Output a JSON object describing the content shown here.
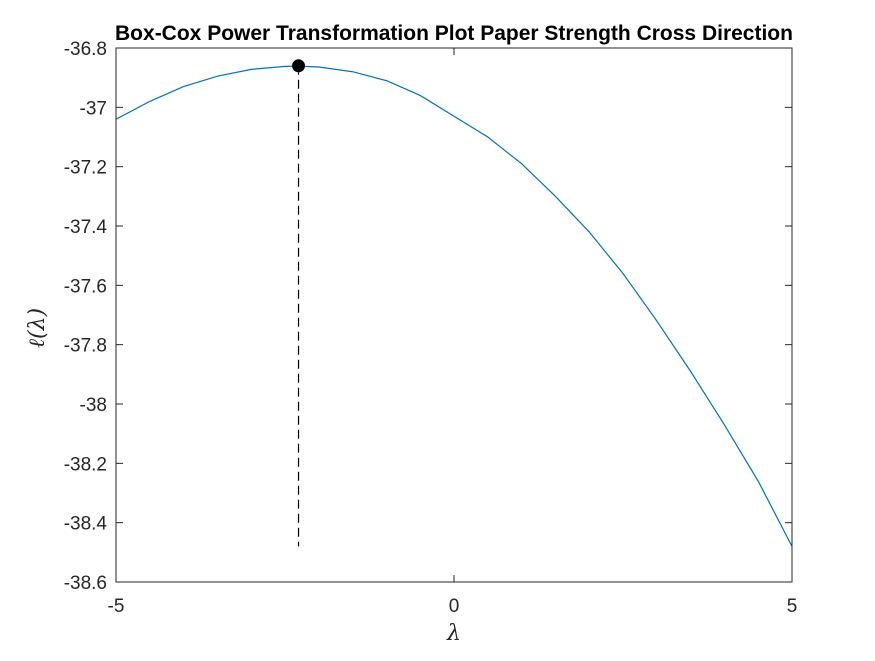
{
  "chart_data": {
    "type": "line",
    "title": "Box-Cox Power Transformation Plot Paper Strength Cross Direction",
    "xlabel": "λ",
    "ylabel": "ℓ(λ)",
    "xlim": [
      -5,
      5
    ],
    "ylim": [
      -38.6,
      -36.8
    ],
    "xticks": [
      -5,
      0,
      5
    ],
    "xtick_labels": [
      "-5",
      "0",
      "5"
    ],
    "yticks": [
      -38.6,
      -38.4,
      -38.2,
      -38,
      -37.8,
      -37.6,
      -37.4,
      -37.2,
      -37,
      -36.8
    ],
    "ytick_labels": [
      "-38.6",
      "-38.4",
      "-38.2",
      "-38",
      "-37.8",
      "-37.6",
      "-37.4",
      "-37.2",
      "-37",
      "-36.8"
    ],
    "grid": false,
    "series": [
      {
        "color": "#0072BD",
        "x": [
          -5,
          -4.5,
          -4,
          -3.5,
          -3,
          -2.5,
          -2.3,
          -2,
          -1.5,
          -1,
          -0.5,
          0,
          0.5,
          1,
          1.5,
          2,
          2.5,
          3,
          3.5,
          4,
          4.5,
          5
        ],
        "y": [
          -37.04,
          -36.98,
          -36.93,
          -36.895,
          -36.872,
          -36.862,
          -36.861,
          -36.864,
          -36.88,
          -36.91,
          -36.96,
          -37.03,
          -37.1,
          -37.19,
          -37.3,
          -37.42,
          -37.56,
          -37.72,
          -37.89,
          -38.07,
          -38.26,
          -38.48
        ]
      }
    ],
    "optimum": {
      "x": -2.3,
      "y": -36.86,
      "marker_color": "#000000",
      "line_bottom": -38.48
    }
  }
}
